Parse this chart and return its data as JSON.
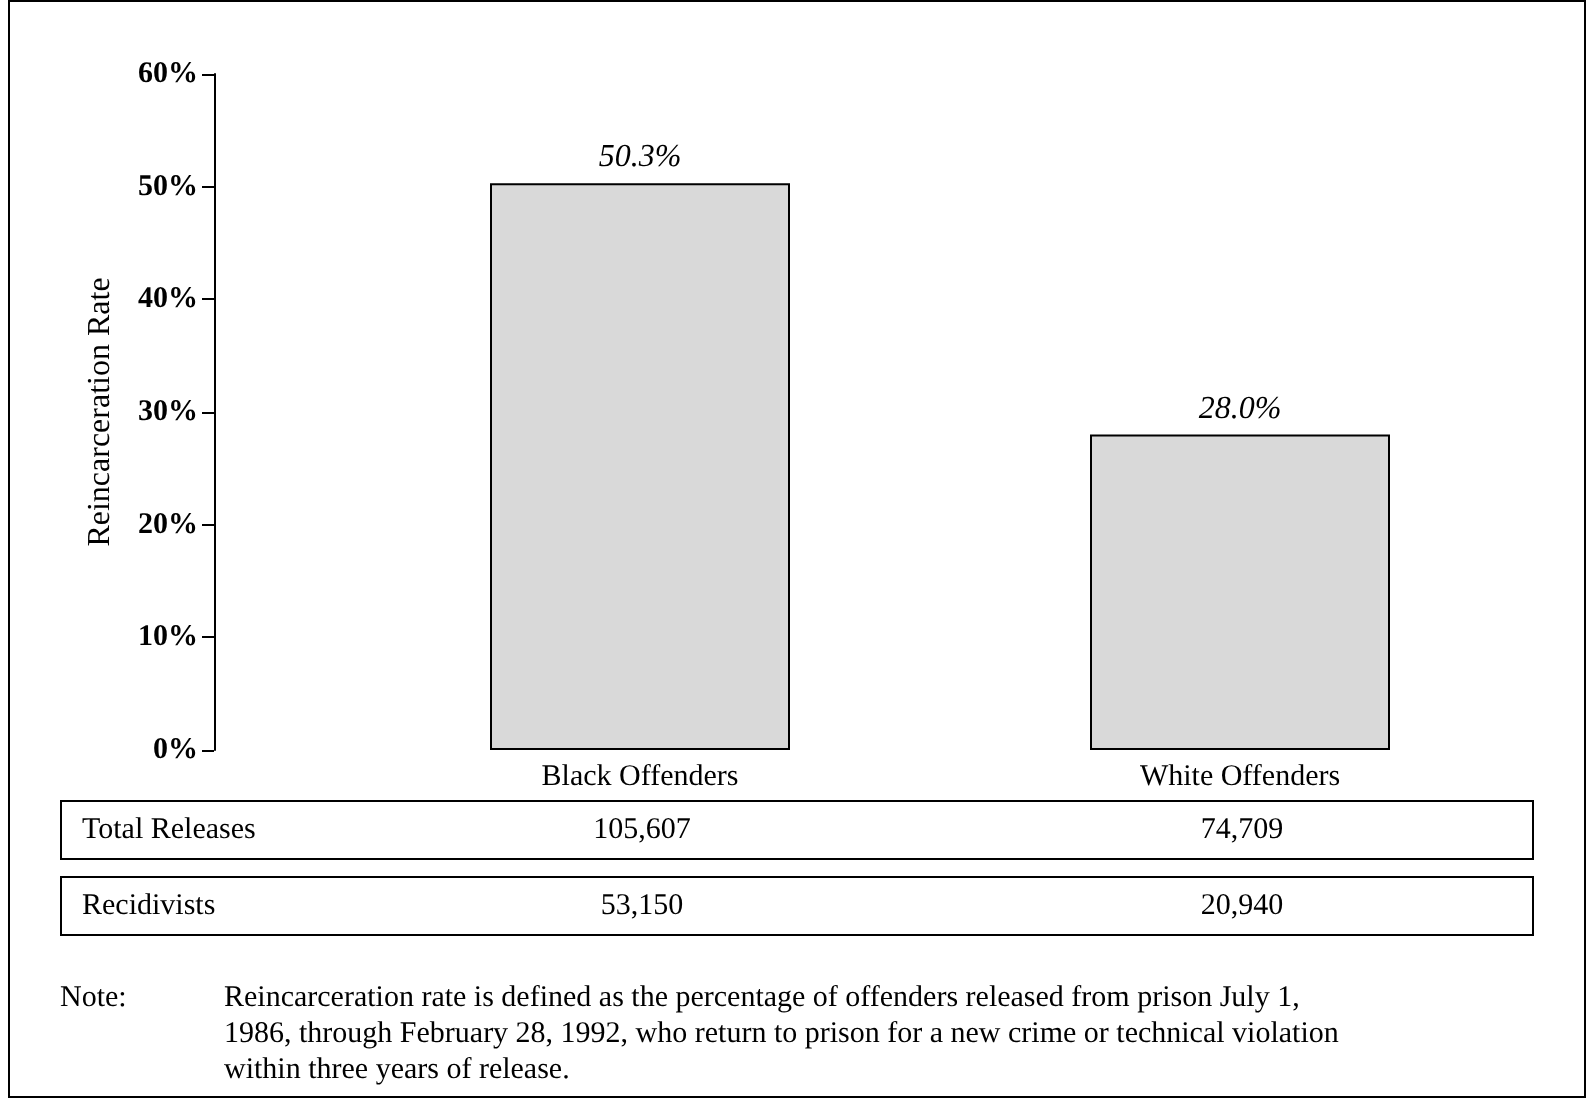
{
  "chart_data": {
    "type": "bar",
    "ylabel": "Reincarceration Rate",
    "categories": [
      "Black Offenders",
      "White Offenders"
    ],
    "values": [
      50.3,
      28.0
    ],
    "value_labels": [
      "50.3%",
      "28.0%"
    ],
    "color": "#d9d9d9",
    "ylim": [
      0,
      60
    ],
    "yticks": [
      {
        "value": 0,
        "label": "0%"
      },
      {
        "value": 10,
        "label": "10%"
      },
      {
        "value": 20,
        "label": "20%"
      },
      {
        "value": 30,
        "label": "30%"
      },
      {
        "value": 40,
        "label": "40%"
      },
      {
        "value": 50,
        "label": "50%"
      },
      {
        "value": 60,
        "label": "60%"
      }
    ],
    "annotations": [
      "Total Releases",
      "105,607",
      "74,709",
      "Recidivists",
      "53,150",
      "20,940",
      "Note:",
      "Reincarceration rate is defined as the percentage of offenders released from prison July 1, 1986, through February 28, 1992, who return to prison for a new crime or technical violation within three years of release."
    ]
  }
}
